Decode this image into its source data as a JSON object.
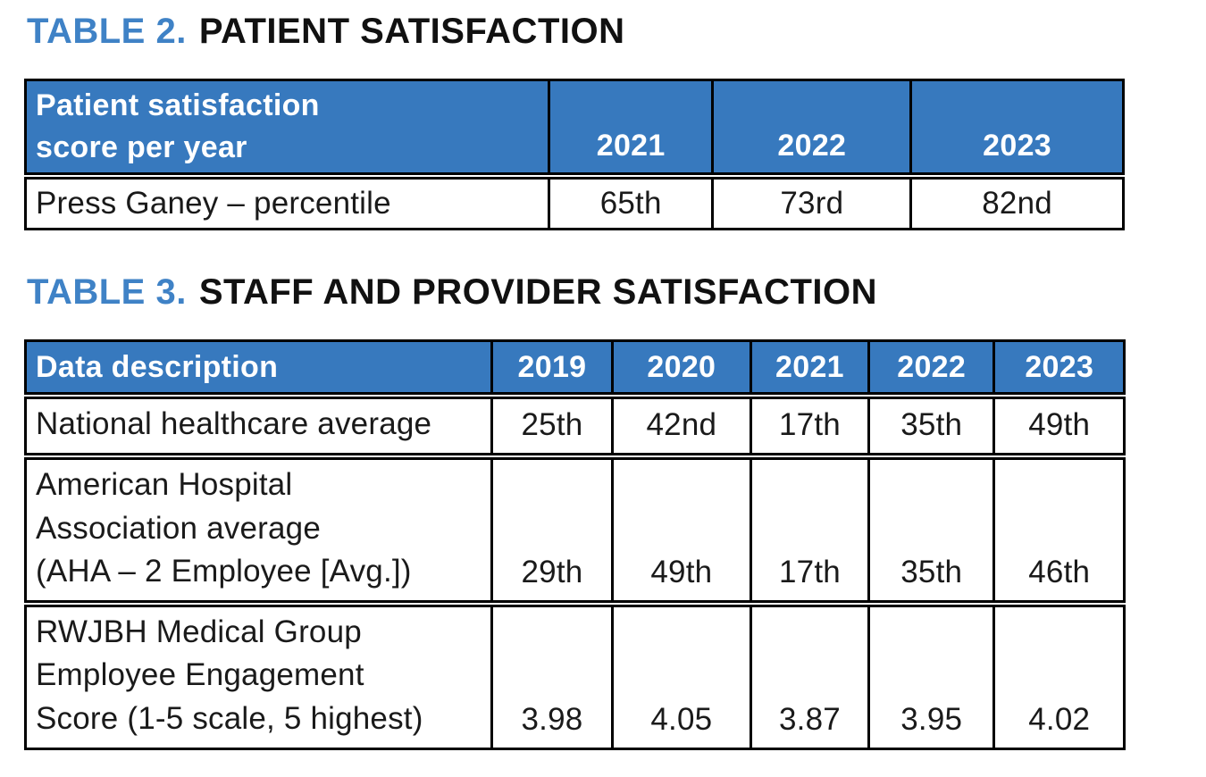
{
  "colors": {
    "title_blue": "#3F82C6",
    "header_blue": "#3779BE",
    "header_text": "#FFFFFF",
    "body_text": "#1A1A1A",
    "border_black": "#000000"
  },
  "tables": [
    {
      "label": "TABLE 2.",
      "title": "PATIENT SATISFACTION",
      "columns": [
        "Patient satisfaction\nscore per year",
        "2021",
        "2022",
        "2023"
      ],
      "rows": [
        [
          "Press Ganey – percentile",
          "65th",
          "73rd",
          "82nd"
        ]
      ]
    },
    {
      "label": "TABLE 3.",
      "title": "STAFF AND PROVIDER SATISFACTION",
      "columns": [
        "Data description",
        "2019",
        "2020",
        "2021",
        "2022",
        "2023"
      ],
      "rows": [
        [
          "National healthcare average",
          "25th",
          "42nd",
          "17th",
          "35th",
          "49th"
        ],
        [
          "American Hospital\nAssociation average\n(AHA – 2 Employee [Avg.])",
          "29th",
          "49th",
          "17th",
          "35th",
          "46th"
        ],
        [
          "RWJBH Medical Group\nEmployee Engagement\nScore (1-5 scale, 5 highest)",
          "3.98",
          "4.05",
          "3.87",
          "3.95",
          "4.02"
        ]
      ]
    }
  ]
}
